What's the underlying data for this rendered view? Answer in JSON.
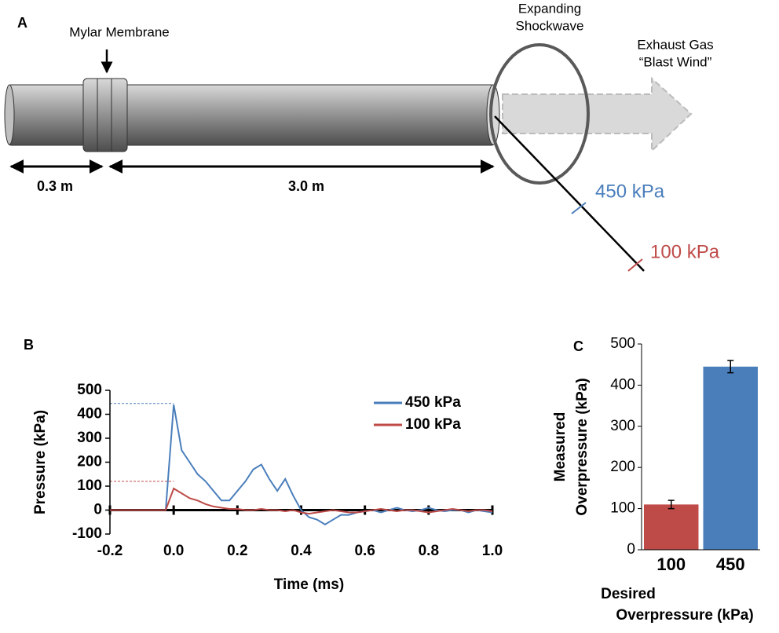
{
  "diagram": {
    "panel_label": "A",
    "membrane_label": "Mylar Membrane",
    "shockwave_label": [
      "Expanding",
      "Shockwave"
    ],
    "exhaust_label": [
      "Exhaust Gas",
      "“Blast Wind”"
    ],
    "short_length": "0.3 m",
    "long_length": "3.0 m",
    "near_sensor": "450 kPa",
    "far_sensor": "100 kPa"
  },
  "chart_data": [
    {
      "type": "line",
      "panel_label": "B",
      "xlabel": "Time (ms)",
      "ylabel": "Pressure (kPa)",
      "x": [
        -0.2,
        -0.175,
        -0.15,
        -0.125,
        -0.1,
        -0.075,
        -0.05,
        -0.025,
        0,
        0.025,
        0.05,
        0.075,
        0.1,
        0.125,
        0.15,
        0.175,
        0.2,
        0.225,
        0.25,
        0.275,
        0.3,
        0.325,
        0.35,
        0.375,
        0.4,
        0.425,
        0.45,
        0.475,
        0.5,
        0.525,
        0.55,
        0.575,
        0.6,
        0.625,
        0.65,
        0.675,
        0.7,
        0.725,
        0.75,
        0.775,
        0.8,
        0.825,
        0.85,
        0.875,
        0.9,
        0.925,
        0.95,
        0.975,
        1.0
      ],
      "series": [
        {
          "name": "450 kPa",
          "color": "#4a7ebb",
          "values": [
            0,
            0,
            0,
            0,
            0,
            0,
            0,
            0,
            440,
            250,
            200,
            150,
            120,
            80,
            40,
            40,
            80,
            120,
            170,
            190,
            130,
            80,
            130,
            60,
            0,
            -30,
            -40,
            -60,
            -40,
            -20,
            -20,
            -10,
            -5,
            0,
            -10,
            0,
            10,
            0,
            -5,
            0,
            10,
            0,
            -5,
            0,
            0,
            -10,
            0,
            -5,
            -10
          ]
        },
        {
          "name": "100 kPa",
          "color": "#be4b48",
          "values": [
            0,
            0,
            0,
            0,
            0,
            0,
            0,
            0,
            90,
            70,
            50,
            40,
            25,
            15,
            10,
            5,
            5,
            0,
            0,
            5,
            0,
            0,
            -5,
            0,
            -10,
            -15,
            -10,
            -5,
            0,
            -5,
            -10,
            -10,
            -5,
            0,
            5,
            0,
            -5,
            0,
            0,
            -5,
            -10,
            -5,
            0,
            5,
            0,
            -5,
            0,
            0,
            -5
          ]
        }
      ],
      "hlines": [
        {
          "y": 445,
          "x_end": 0,
          "color": "#4a7ebb"
        },
        {
          "y": 120,
          "x_end": 0,
          "color": "#be4b48"
        }
      ],
      "xlim": [
        -0.2,
        1.0
      ],
      "xticks": [
        -0.2,
        {
          "value": 0,
          "label": "0.0"
        },
        0.2,
        0.4,
        0.6,
        0.8,
        {
          "value": 1,
          "label": "1.0"
        }
      ],
      "ylim": [
        -100,
        500
      ],
      "yticks": [
        -100,
        0,
        100,
        200,
        300,
        400,
        500
      ]
    },
    {
      "type": "bar",
      "panel_label": "C",
      "xlabel": [
        "Desired",
        "Overpressure (kPa)"
      ],
      "ylabel": [
        "Measured",
        "Overpressure (kPa)"
      ],
      "categories": [
        "100",
        "450"
      ],
      "values": [
        110,
        445
      ],
      "errors": [
        10,
        15
      ],
      "colors": [
        "#be4b48",
        "#4a7ebb"
      ],
      "ylim": [
        0,
        500
      ],
      "yticks": [
        0,
        100,
        200,
        300,
        400,
        500
      ]
    }
  ]
}
